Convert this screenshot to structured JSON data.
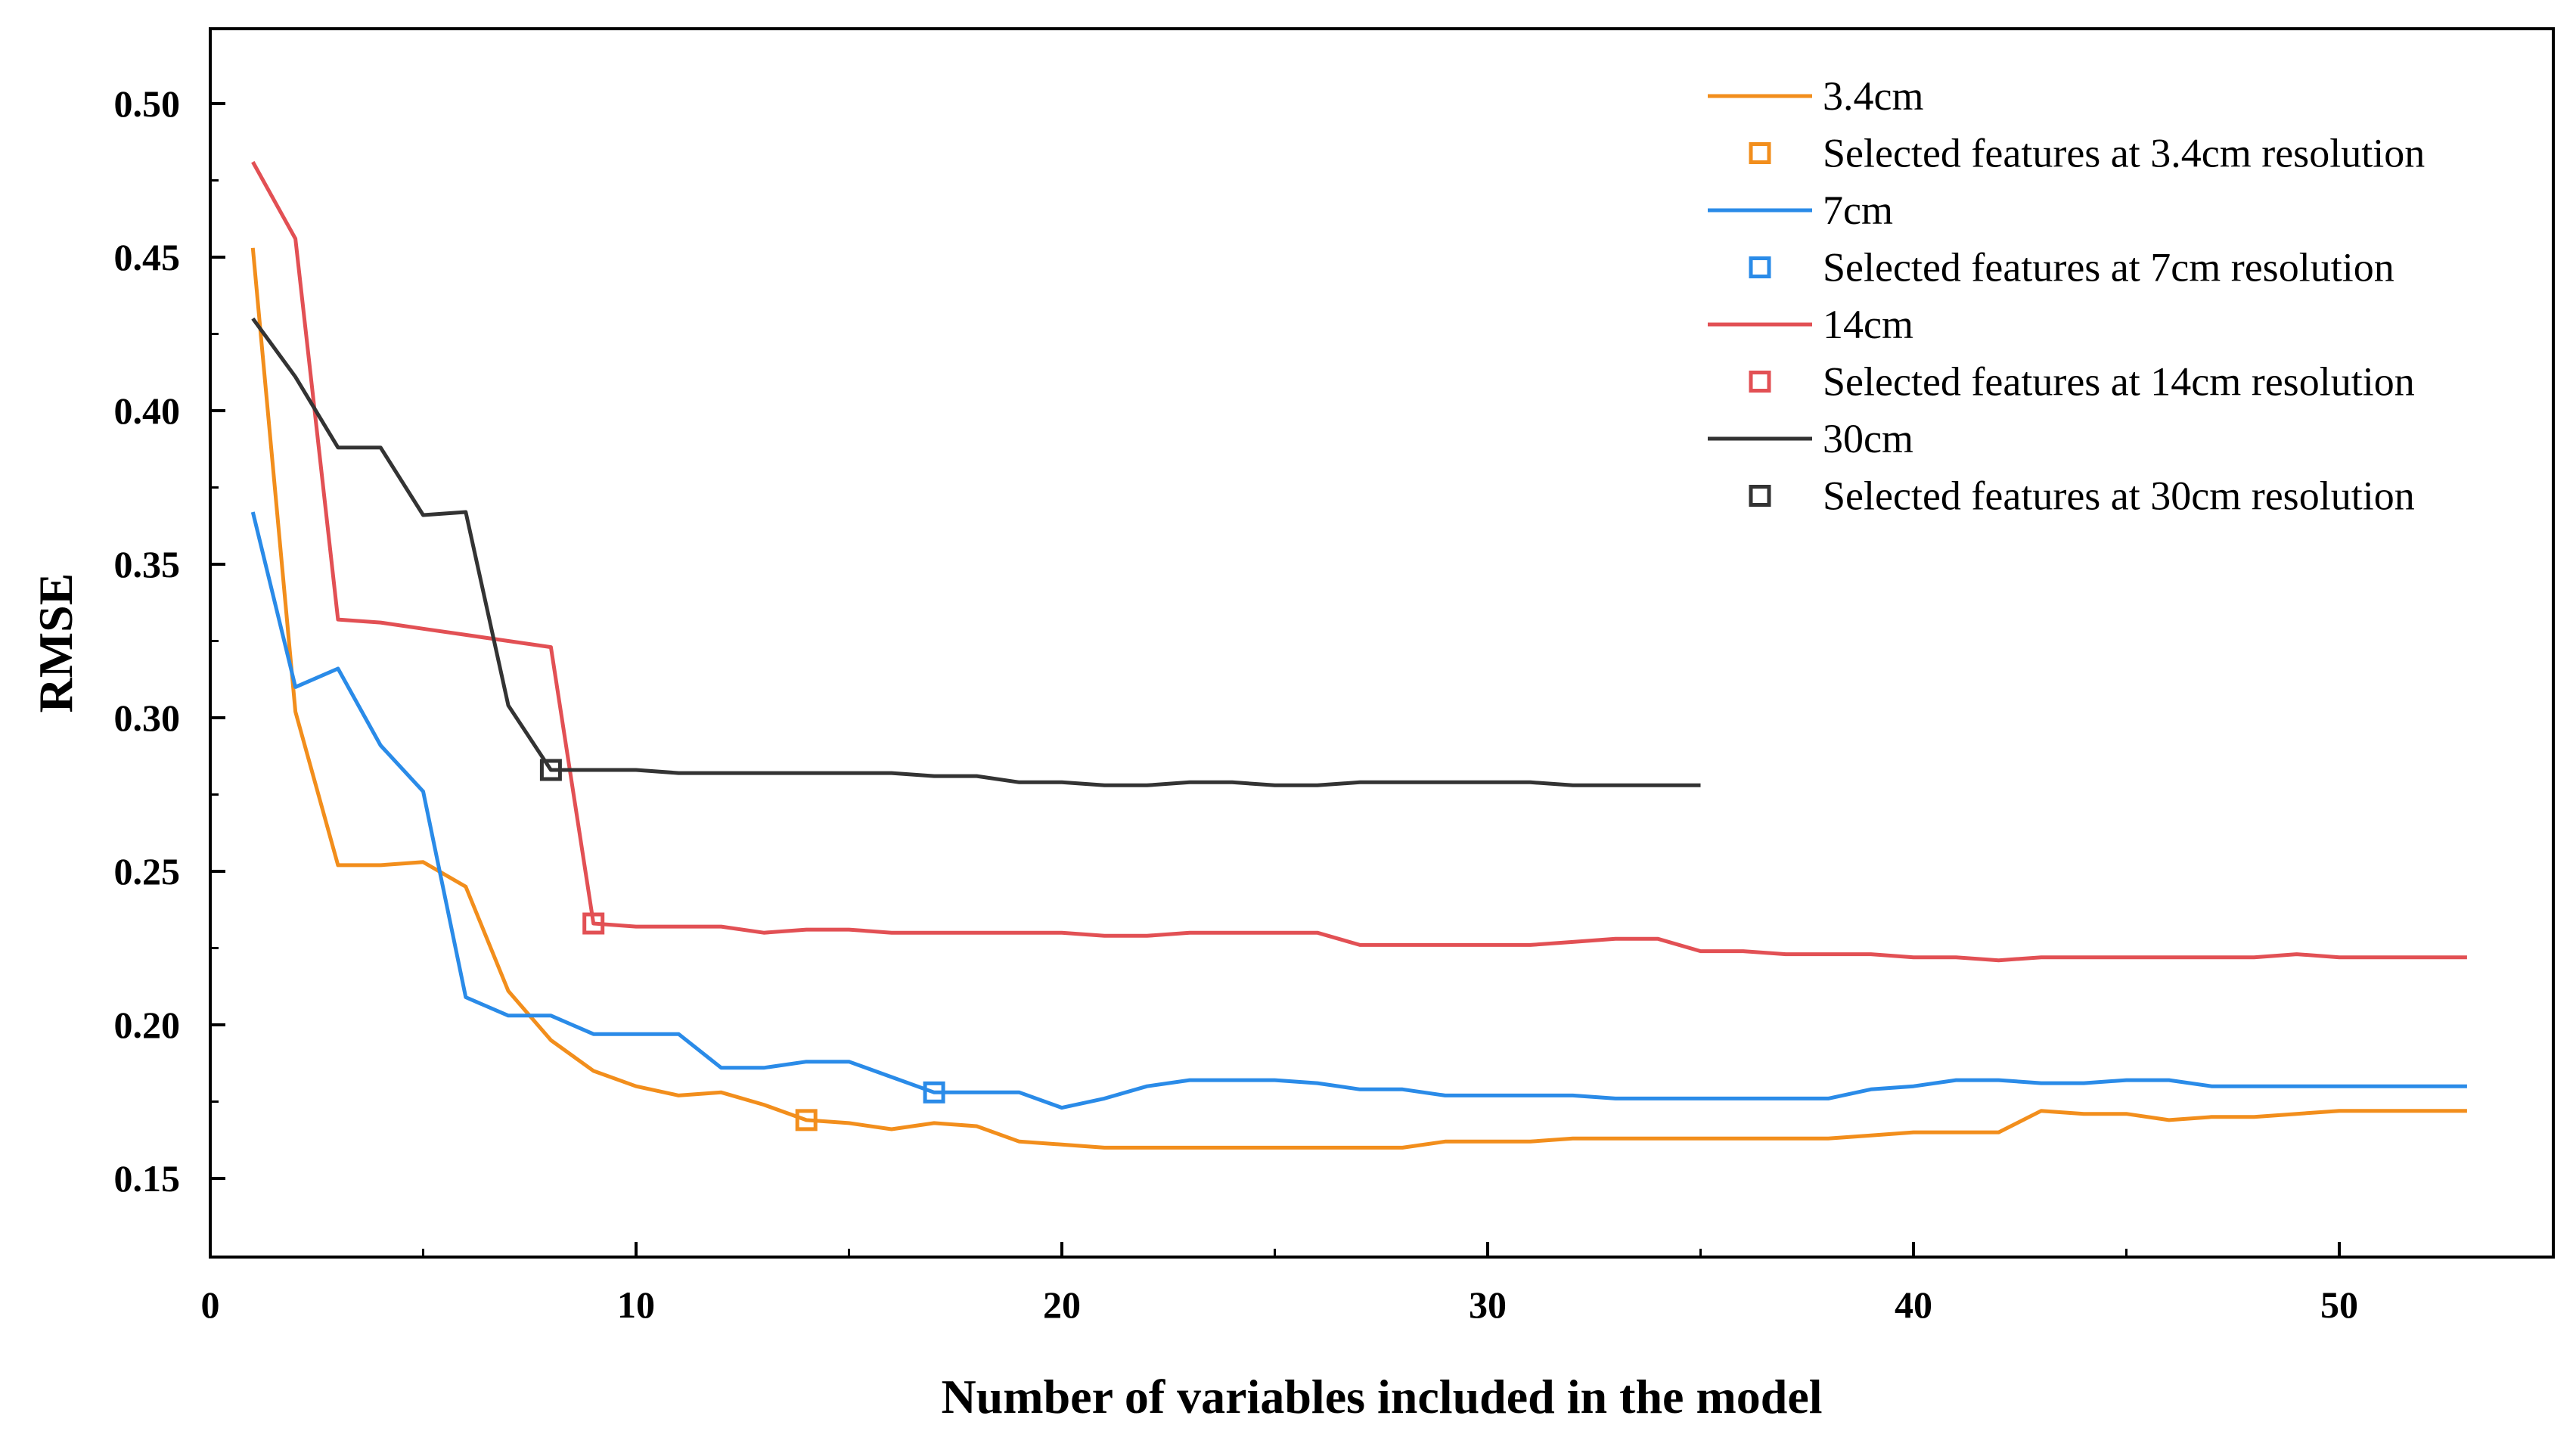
{
  "chart_data": {
    "type": "line",
    "title": "",
    "xlabel": "Number of variables included in the model",
    "ylabel": "RMSE",
    "xlim": [
      0,
      55
    ],
    "ylim": [
      0.125,
      0.525
    ],
    "xticks": [
      0,
      10,
      20,
      30,
      40,
      50
    ],
    "yticks": [
      0.15,
      0.2,
      0.25,
      0.3,
      0.35,
      0.4,
      0.45,
      0.5
    ],
    "xtick_labels": [
      "0",
      "10",
      "20",
      "30",
      "40",
      "50"
    ],
    "ytick_labels": [
      "0.15",
      "0.20",
      "0.25",
      "0.30",
      "0.35",
      "0.40",
      "0.45",
      "0.50"
    ],
    "grid": false,
    "legend_position": "top-right",
    "series": [
      {
        "name": "3.4cm",
        "marker_label": "Selected features at 3.4cm resolution",
        "color": "#f28e1c",
        "x": [
          1,
          2,
          3,
          4,
          5,
          6,
          7,
          8,
          9,
          10,
          11,
          12,
          13,
          14,
          15,
          16,
          17,
          18,
          19,
          20,
          21,
          22,
          23,
          24,
          25,
          26,
          27,
          28,
          29,
          30,
          31,
          32,
          33,
          34,
          35,
          36,
          37,
          38,
          39,
          40,
          41,
          42,
          43,
          44,
          45,
          46,
          47,
          48,
          49,
          50,
          51,
          52,
          53
        ],
        "values": [
          0.453,
          0.302,
          0.252,
          0.252,
          0.253,
          0.245,
          0.211,
          0.195,
          0.185,
          0.18,
          0.177,
          0.178,
          0.174,
          0.169,
          0.168,
          0.166,
          0.168,
          0.167,
          0.162,
          0.161,
          0.16,
          0.16,
          0.16,
          0.16,
          0.16,
          0.16,
          0.16,
          0.16,
          0.162,
          0.162,
          0.162,
          0.163,
          0.163,
          0.163,
          0.163,
          0.163,
          0.163,
          0.163,
          0.164,
          0.165,
          0.165,
          0.165,
          0.172,
          0.171,
          0.171,
          0.169,
          0.17,
          0.17,
          0.171,
          0.172,
          0.172,
          0.172,
          0.172
        ],
        "selected": {
          "x": 14,
          "y": 0.169
        }
      },
      {
        "name": "7cm",
        "marker_label": "Selected features at 7cm resolution",
        "color": "#2a8be8",
        "x": [
          1,
          2,
          3,
          4,
          5,
          6,
          7,
          8,
          9,
          10,
          11,
          12,
          13,
          14,
          15,
          16,
          17,
          18,
          19,
          20,
          21,
          22,
          23,
          24,
          25,
          26,
          27,
          28,
          29,
          30,
          31,
          32,
          33,
          34,
          35,
          36,
          37,
          38,
          39,
          40,
          41,
          42,
          43,
          44,
          45,
          46,
          47,
          48,
          49,
          50,
          51,
          52,
          53
        ],
        "values": [
          0.367,
          0.31,
          0.316,
          0.291,
          0.276,
          0.209,
          0.203,
          0.203,
          0.197,
          0.197,
          0.197,
          0.186,
          0.186,
          0.188,
          0.188,
          0.183,
          0.178,
          0.178,
          0.178,
          0.173,
          0.176,
          0.18,
          0.182,
          0.182,
          0.182,
          0.181,
          0.179,
          0.179,
          0.177,
          0.177,
          0.177,
          0.177,
          0.176,
          0.176,
          0.176,
          0.176,
          0.176,
          0.176,
          0.179,
          0.18,
          0.182,
          0.182,
          0.181,
          0.181,
          0.182,
          0.182,
          0.18,
          0.18,
          0.18,
          0.18,
          0.18,
          0.18,
          0.18
        ],
        "selected": {
          "x": 17,
          "y": 0.178
        }
      },
      {
        "name": "14cm",
        "marker_label": "Selected features at 14cm resolution",
        "color": "#e25054",
        "x": [
          1,
          2,
          3,
          4,
          5,
          6,
          7,
          8,
          9,
          10,
          11,
          12,
          13,
          14,
          15,
          16,
          17,
          18,
          19,
          20,
          21,
          22,
          23,
          24,
          25,
          26,
          27,
          28,
          29,
          30,
          31,
          32,
          33,
          34,
          35,
          36,
          37,
          38,
          39,
          40,
          41,
          42,
          43,
          44,
          45,
          46,
          47,
          48,
          49,
          50,
          51,
          52,
          53
        ],
        "values": [
          0.481,
          0.456,
          0.332,
          0.331,
          0.329,
          0.327,
          0.325,
          0.323,
          0.233,
          0.232,
          0.232,
          0.232,
          0.23,
          0.231,
          0.231,
          0.23,
          0.23,
          0.23,
          0.23,
          0.23,
          0.229,
          0.229,
          0.23,
          0.23,
          0.23,
          0.23,
          0.226,
          0.226,
          0.226,
          0.226,
          0.226,
          0.227,
          0.228,
          0.228,
          0.224,
          0.224,
          0.223,
          0.223,
          0.223,
          0.222,
          0.222,
          0.221,
          0.222,
          0.222,
          0.222,
          0.222,
          0.222,
          0.222,
          0.223,
          0.222,
          0.222,
          0.222,
          0.222
        ],
        "selected": {
          "x": 9,
          "y": 0.233
        }
      },
      {
        "name": "30cm",
        "marker_label": "Selected features at 30cm resolution",
        "color": "#333333",
        "x": [
          1,
          2,
          3,
          4,
          5,
          6,
          7,
          8,
          9,
          10,
          11,
          12,
          13,
          14,
          15,
          16,
          17,
          18,
          19,
          20,
          21,
          22,
          23,
          24,
          25,
          26,
          27,
          28,
          29,
          30,
          31,
          32,
          33,
          34,
          35
        ],
        "values": [
          0.43,
          0.411,
          0.388,
          0.388,
          0.366,
          0.367,
          0.304,
          0.283,
          0.283,
          0.283,
          0.282,
          0.282,
          0.282,
          0.282,
          0.282,
          0.282,
          0.281,
          0.281,
          0.279,
          0.279,
          0.278,
          0.278,
          0.279,
          0.279,
          0.278,
          0.278,
          0.279,
          0.279,
          0.279,
          0.279,
          0.279,
          0.278,
          0.278,
          0.278,
          0.278
        ],
        "selected": {
          "x": 8,
          "y": 0.283
        }
      }
    ]
  }
}
